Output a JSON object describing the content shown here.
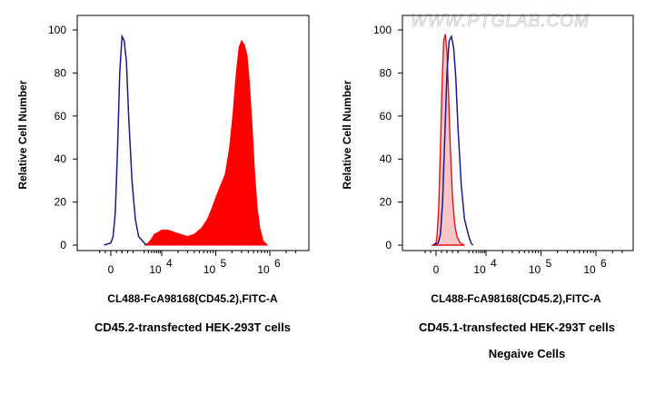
{
  "watermark": "WWW.PTGLAB.COM",
  "colors": {
    "positive_fill": "#ff0000",
    "negative_fill": "#f9c6c8",
    "negative_line": "#e0161b",
    "control_line": "#1a1a8c",
    "axis": "#000000"
  },
  "chart_data": [
    {
      "type": "area",
      "title": "",
      "xlabel": "CL488-FcA98168(CD45.2),FITC-A",
      "ylabel": "Relative Cell Number",
      "caption": "CD45.2-transfected HEK-293T cells",
      "x_scale": "biexponential",
      "xlim": [
        -1000,
        3000000
      ],
      "ylim": [
        0,
        100
      ],
      "x_ticks": [
        {
          "label": "0",
          "value": 0
        },
        {
          "label": "10",
          "exp": "4",
          "value": 10000
        },
        {
          "label": "10",
          "exp": "5",
          "value": 100000
        },
        {
          "label": "10",
          "exp": "6",
          "value": 1000000
        }
      ],
      "y_ticks": [
        "0",
        "20",
        "40",
        "60",
        "80",
        "100"
      ],
      "grid": false,
      "series": [
        {
          "kind": "filled",
          "x": [
            3000,
            4000,
            5000,
            6000,
            8000,
            10000,
            13000,
            17000,
            22000,
            30000,
            40000,
            55000,
            70000,
            85000,
            100000,
            120000,
            150000,
            180000,
            210000,
            240000,
            270000,
            300000,
            340000,
            380000,
            420000,
            470000,
            520000,
            580000,
            650000,
            750000,
            900000
          ],
          "y": [
            0,
            1,
            3,
            5,
            6,
            7,
            7,
            6,
            5,
            4,
            5,
            8,
            12,
            17,
            22,
            27,
            33,
            45,
            62,
            80,
            92,
            95,
            93,
            88,
            75,
            55,
            35,
            18,
            8,
            2,
            0
          ]
        },
        {
          "kind": "outline",
          "x": [
            -600,
            0,
            200,
            400,
            600,
            800,
            1000,
            1200,
            1400,
            1600,
            1900,
            2200,
            2500,
            3000,
            3500
          ],
          "y": [
            0,
            1,
            4,
            15,
            45,
            80,
            97,
            95,
            85,
            60,
            30,
            12,
            4,
            1,
            0
          ]
        }
      ]
    },
    {
      "type": "area",
      "title": "",
      "xlabel": "CL488-FcA98168(CD45.2),FITC-A",
      "ylabel": "Relative Cell Number",
      "caption": "CD45.1-transfected HEK-293T cells",
      "subcaption": "Negaive Cells",
      "x_scale": "biexponential",
      "xlim": [
        -1000,
        3000000
      ],
      "ylim": [
        0,
        100
      ],
      "x_ticks": [
        {
          "label": "0",
          "value": 0
        },
        {
          "label": "10",
          "exp": "4",
          "value": 10000
        },
        {
          "label": "10",
          "exp": "5",
          "value": 100000
        },
        {
          "label": "10",
          "exp": "6",
          "value": 1000000
        }
      ],
      "y_ticks": [
        "0",
        "20",
        "40",
        "60",
        "80",
        "100"
      ],
      "grid": false,
      "series": [
        {
          "kind": "filled-light",
          "x": [
            -300,
            0,
            100,
            250,
            400,
            550,
            700,
            850,
            1000,
            1150,
            1300,
            1500,
            1700,
            1900,
            2200,
            2600
          ],
          "y": [
            0,
            1,
            5,
            18,
            45,
            75,
            95,
            98,
            90,
            70,
            45,
            22,
            10,
            4,
            1,
            0
          ]
        },
        {
          "kind": "outline",
          "x": [
            -200,
            200,
            400,
            600,
            800,
            1000,
            1200,
            1400,
            1600,
            1800,
            2000,
            2300,
            2600,
            3000,
            3500,
            4000
          ],
          "y": [
            0,
            1,
            5,
            20,
            50,
            80,
            95,
            97,
            92,
            78,
            55,
            28,
            12,
            4,
            1,
            0
          ]
        }
      ]
    }
  ]
}
